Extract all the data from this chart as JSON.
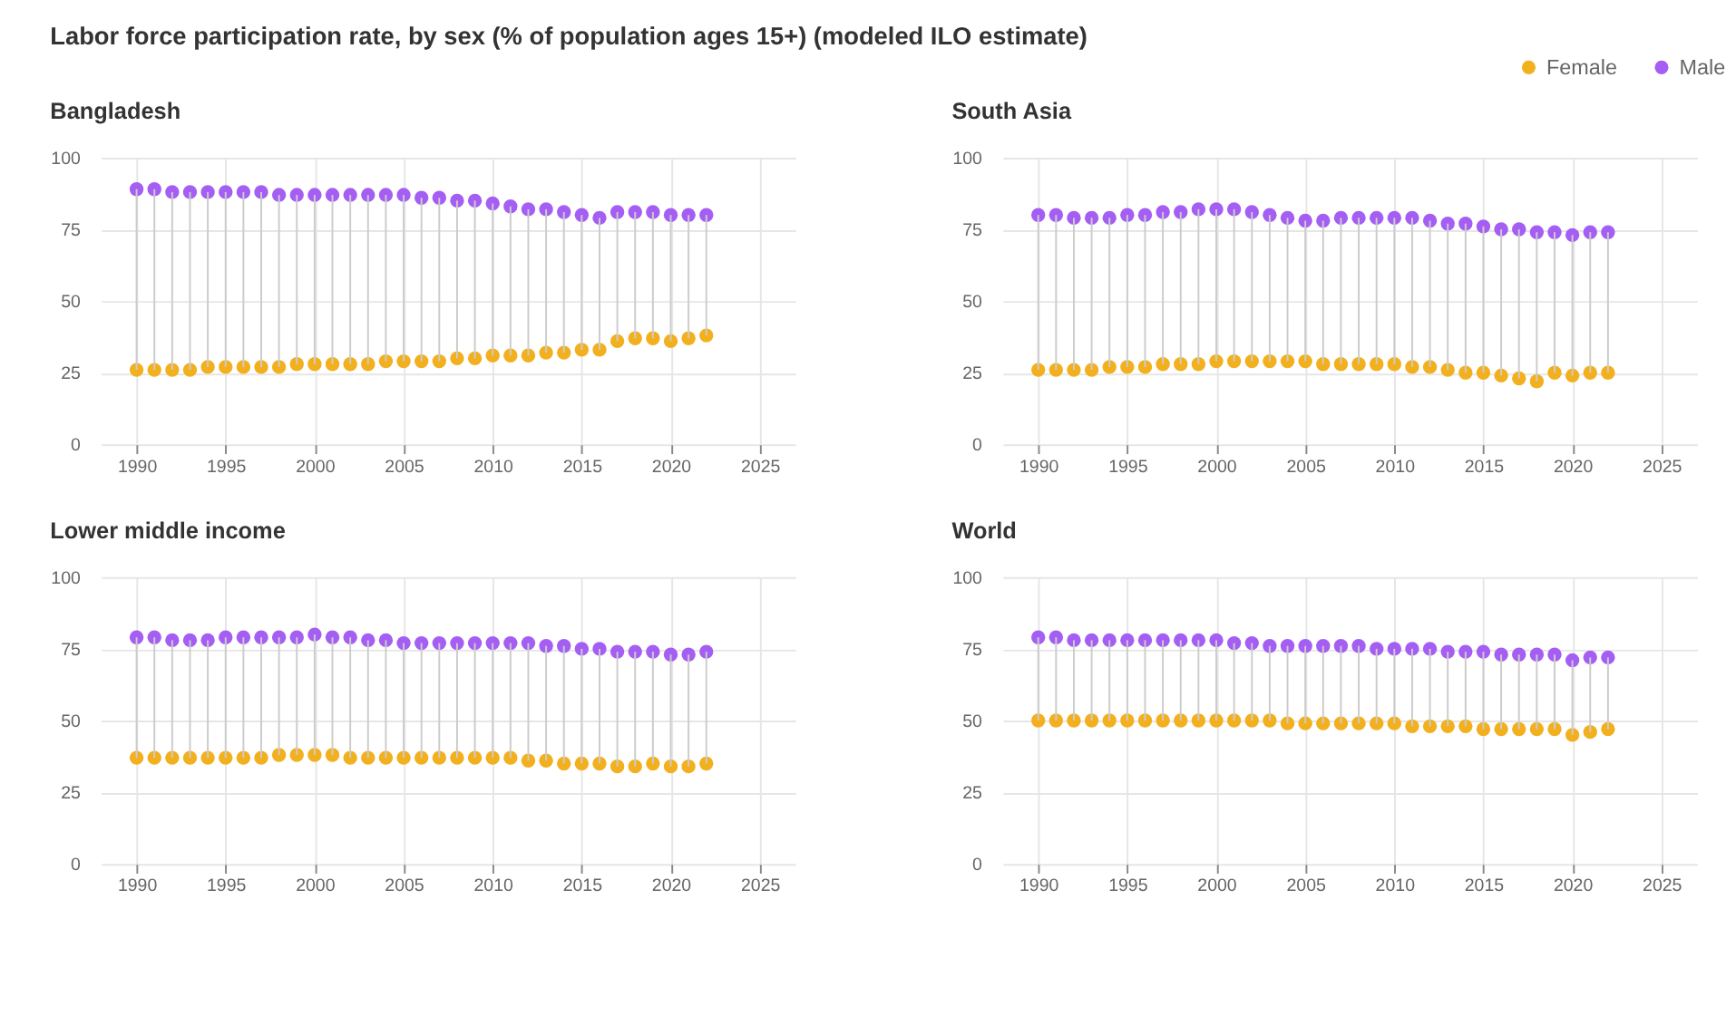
{
  "chart_data": [
    {
      "type": "scatter",
      "title": "Bangladesh",
      "annotations": [
        "Labor force participation rate, by sex (% of population ages 15+) (modeled ILO estimate)"
      ],
      "legend": "top right",
      "marker": "circle",
      "grid": true,
      "x": [
        1990,
        1991,
        1992,
        1993,
        1994,
        1995,
        1996,
        1997,
        1998,
        1999,
        2000,
        2001,
        2002,
        2003,
        2004,
        2005,
        2006,
        2007,
        2008,
        2009,
        2010,
        2011,
        2012,
        2013,
        2014,
        2015,
        2016,
        2017,
        2018,
        2019,
        2020,
        2021,
        2022
      ],
      "xlim": [
        1988,
        2027
      ],
      "xticks": [
        1990,
        1995,
        2000,
        2005,
        2010,
        2015,
        2020,
        2025
      ],
      "ylim": [
        0,
        100
      ],
      "yticks": [
        0,
        25,
        50,
        75,
        100
      ],
      "series": [
        {
          "name": "Female",
          "color": "#f2b01e",
          "values": [
            26,
            26,
            26,
            26,
            27,
            27,
            27,
            27,
            27,
            28,
            28,
            28,
            28,
            28,
            29,
            29,
            29,
            29,
            30,
            30,
            31,
            31,
            31,
            32,
            32,
            33,
            33,
            36,
            37,
            37,
            36,
            37,
            38
          ]
        },
        {
          "name": "Male",
          "color": "#a55ef3",
          "values": [
            89,
            89,
            88,
            88,
            88,
            88,
            88,
            88,
            87,
            87,
            87,
            87,
            87,
            87,
            87,
            87,
            86,
            86,
            85,
            85,
            84,
            83,
            82,
            82,
            81,
            80,
            79,
            81,
            81,
            81,
            80,
            80,
            80
          ],
          "errors": [
            [
              26,
              89
            ],
            [
              26,
              89
            ],
            [
              26,
              88
            ],
            [
              26,
              88
            ],
            [
              27,
              88
            ],
            [
              27,
              88
            ],
            [
              27,
              88
            ],
            [
              27,
              88
            ],
            [
              27,
              87
            ],
            [
              28,
              87
            ],
            [
              28,
              87
            ],
            [
              28,
              87
            ],
            [
              28,
              87
            ],
            [
              28,
              87
            ],
            [
              29,
              87
            ],
            [
              29,
              87
            ],
            [
              29,
              86
            ],
            [
              29,
              86
            ],
            [
              30,
              85
            ],
            [
              30,
              85
            ],
            [
              31,
              84
            ],
            [
              31,
              83
            ],
            [
              31,
              82
            ],
            [
              32,
              82
            ],
            [
              32,
              81
            ],
            [
              33,
              80
            ],
            [
              33,
              79
            ],
            [
              36,
              81
            ],
            [
              37,
              81
            ],
            [
              37,
              81
            ],
            [
              36,
              80
            ],
            [
              37,
              80
            ],
            [
              38,
              80
            ]
          ]
        }
      ]
    },
    {
      "type": "scatter",
      "title": "South Asia",
      "marker": "circle",
      "grid": true,
      "x": [
        1990,
        1991,
        1992,
        1993,
        1994,
        1995,
        1996,
        1997,
        1998,
        1999,
        2000,
        2001,
        2002,
        2003,
        2004,
        2005,
        2006,
        2007,
        2008,
        2009,
        2010,
        2011,
        2012,
        2013,
        2014,
        2015,
        2016,
        2017,
        2018,
        2019,
        2020,
        2021,
        2022
      ],
      "xlim": [
        1988,
        2027
      ],
      "xticks": [
        1990,
        1995,
        2000,
        2005,
        2010,
        2015,
        2020,
        2025
      ],
      "ylim": [
        0,
        100
      ],
      "yticks": [
        0,
        25,
        50,
        75,
        100
      ],
      "series": [
        {
          "color": "#f2b01e",
          "values": [
            26,
            26,
            26,
            26,
            27,
            27,
            27,
            28,
            28,
            28,
            29,
            29,
            29,
            29,
            29,
            29,
            28,
            28,
            28,
            28,
            28,
            27,
            27,
            26,
            25,
            25,
            24,
            23,
            22,
            25,
            24,
            25,
            25
          ]
        },
        {
          "color": "#a55ef3",
          "values": [
            80,
            80,
            79,
            79,
            79,
            80,
            80,
            81,
            81,
            82,
            82,
            82,
            81,
            80,
            79,
            78,
            78,
            79,
            79,
            79,
            79,
            79,
            78,
            77,
            77,
            76,
            75,
            75,
            74,
            74,
            73,
            74,
            74
          ],
          "errors": [
            [
              26,
              80
            ],
            [
              26,
              80
            ],
            [
              26,
              79
            ],
            [
              26,
              79
            ],
            [
              27,
              79
            ],
            [
              27,
              80
            ],
            [
              27,
              80
            ],
            [
              28,
              81
            ],
            [
              28,
              81
            ],
            [
              28,
              82
            ],
            [
              29,
              82
            ],
            [
              29,
              82
            ],
            [
              29,
              81
            ],
            [
              29,
              80
            ],
            [
              29,
              79
            ],
            [
              29,
              78
            ],
            [
              28,
              78
            ],
            [
              28,
              79
            ],
            [
              28,
              79
            ],
            [
              28,
              79
            ],
            [
              28,
              79
            ],
            [
              27,
              79
            ],
            [
              27,
              78
            ],
            [
              26,
              77
            ],
            [
              25,
              77
            ],
            [
              25,
              76
            ],
            [
              24,
              75
            ],
            [
              23,
              75
            ],
            [
              22,
              74
            ],
            [
              25,
              74
            ],
            [
              24,
              73
            ],
            [
              25,
              74
            ],
            [
              25,
              74
            ]
          ]
        }
      ]
    },
    {
      "type": "scatter",
      "title": "Lower middle income",
      "marker": "circle",
      "grid": true,
      "x": [
        1990,
        1991,
        1992,
        1993,
        1994,
        1995,
        1996,
        1997,
        1998,
        1999,
        2000,
        2001,
        2002,
        2003,
        2004,
        2005,
        2006,
        2007,
        2008,
        2009,
        2010,
        2011,
        2012,
        2013,
        2014,
        2015,
        2016,
        2017,
        2018,
        2019,
        2020,
        2021,
        2022
      ],
      "xlim": [
        1988,
        2027
      ],
      "xticks": [
        1990,
        1995,
        2000,
        2005,
        2010,
        2015,
        2020,
        2025
      ],
      "ylim": [
        0,
        100
      ],
      "yticks": [
        0,
        25,
        50,
        75,
        100
      ],
      "series": [
        {
          "color": "#f2b01e",
          "values": [
            37,
            37,
            37,
            37,
            37,
            37,
            37,
            37,
            38,
            38,
            38,
            38,
            37,
            37,
            37,
            37,
            37,
            37,
            37,
            37,
            37,
            37,
            36,
            36,
            35,
            35,
            35,
            34,
            34,
            35,
            34,
            34,
            35
          ]
        },
        {
          "color": "#a55ef3",
          "values": [
            79,
            79,
            78,
            78,
            78,
            79,
            79,
            79,
            79,
            79,
            80,
            79,
            79,
            78,
            78,
            77,
            77,
            77,
            77,
            77,
            77,
            77,
            77,
            76,
            76,
            75,
            75,
            74,
            74,
            74,
            73,
            73,
            74
          ],
          "errors": [
            [
              37,
              79
            ],
            [
              37,
              79
            ],
            [
              37,
              78
            ],
            [
              37,
              78
            ],
            [
              37,
              78
            ],
            [
              37,
              79
            ],
            [
              37,
              79
            ],
            [
              37,
              79
            ],
            [
              38,
              79
            ],
            [
              38,
              79
            ],
            [
              38,
              80
            ],
            [
              38,
              79
            ],
            [
              37,
              79
            ],
            [
              37,
              78
            ],
            [
              37,
              78
            ],
            [
              37,
              77
            ],
            [
              37,
              77
            ],
            [
              37,
              77
            ],
            [
              37,
              77
            ],
            [
              37,
              77
            ],
            [
              37,
              77
            ],
            [
              37,
              77
            ],
            [
              36,
              77
            ],
            [
              36,
              76
            ],
            [
              35,
              76
            ],
            [
              35,
              75
            ],
            [
              35,
              75
            ],
            [
              34,
              74
            ],
            [
              34,
              74
            ],
            [
              35,
              74
            ],
            [
              34,
              73
            ],
            [
              34,
              73
            ],
            [
              35,
              74
            ]
          ]
        }
      ]
    },
    {
      "type": "scatter",
      "title": "World",
      "marker": "circle",
      "grid": true,
      "x": [
        1990,
        1991,
        1992,
        1993,
        1994,
        1995,
        1996,
        1997,
        1998,
        1999,
        2000,
        2001,
        2002,
        2003,
        2004,
        2005,
        2006,
        2007,
        2008,
        2009,
        2010,
        2011,
        2012,
        2013,
        2014,
        2015,
        2016,
        2017,
        2018,
        2019,
        2020,
        2021,
        2022
      ],
      "xlim": [
        1988,
        2027
      ],
      "xticks": [
        1990,
        1995,
        2000,
        2005,
        2010,
        2015,
        2020,
        2025
      ],
      "ylim": [
        0,
        100
      ],
      "yticks": [
        0,
        25,
        50,
        75,
        100
      ],
      "series": [
        {
          "color": "#f2b01e",
          "values": [
            50,
            50,
            50,
            50,
            50,
            50,
            50,
            50,
            50,
            50,
            50,
            50,
            50,
            50,
            49,
            49,
            49,
            49,
            49,
            49,
            49,
            48,
            48,
            48,
            48,
            47,
            47,
            47,
            47,
            47,
            45,
            46,
            47
          ]
        },
        {
          "color": "#a55ef3",
          "values": [
            79,
            79,
            78,
            78,
            78,
            78,
            78,
            78,
            78,
            78,
            78,
            77,
            77,
            76,
            76,
            76,
            76,
            76,
            76,
            75,
            75,
            75,
            75,
            74,
            74,
            74,
            73,
            73,
            73,
            73,
            71,
            72,
            72
          ],
          "errors": [
            [
              50,
              79
            ],
            [
              50,
              79
            ],
            [
              50,
              78
            ],
            [
              50,
              78
            ],
            [
              50,
              78
            ],
            [
              50,
              78
            ],
            [
              50,
              78
            ],
            [
              50,
              78
            ],
            [
              50,
              78
            ],
            [
              50,
              78
            ],
            [
              50,
              78
            ],
            [
              50,
              77
            ],
            [
              50,
              77
            ],
            [
              50,
              76
            ],
            [
              49,
              76
            ],
            [
              49,
              76
            ],
            [
              49,
              76
            ],
            [
              49,
              76
            ],
            [
              49,
              76
            ],
            [
              49,
              75
            ],
            [
              49,
              75
            ],
            [
              48,
              75
            ],
            [
              48,
              75
            ],
            [
              48,
              74
            ],
            [
              48,
              74
            ],
            [
              47,
              74
            ],
            [
              47,
              73
            ],
            [
              47,
              73
            ],
            [
              47,
              73
            ],
            [
              47,
              73
            ],
            [
              45,
              71
            ],
            [
              46,
              72
            ],
            [
              47,
              72
            ]
          ]
        }
      ]
    }
  ]
}
